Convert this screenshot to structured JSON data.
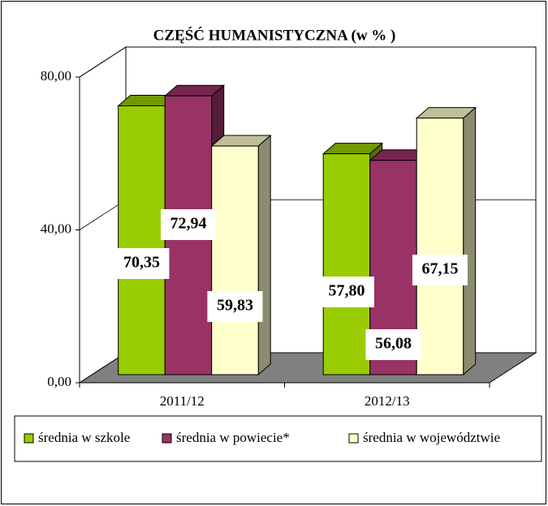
{
  "chart_data": {
    "type": "bar3d",
    "title": "CZĘŚĆ HUMANISTYCZNA (w % )",
    "categories": [
      "2011/12",
      "2012/13"
    ],
    "series": [
      {
        "name": "średnia w szkole",
        "color": "#99cc00",
        "values": [
          70.35,
          57.8
        ],
        "value_labels": [
          "70,35",
          "57,80"
        ]
      },
      {
        "name": "średnia w powiecie*",
        "color": "#993366",
        "values": [
          72.94,
          56.08
        ],
        "value_labels": [
          "72,94",
          "56,08"
        ]
      },
      {
        "name": "średnia w województwie",
        "color": "#ffffcc",
        "values": [
          59.83,
          67.15
        ],
        "value_labels": [
          "59,83",
          "67,15"
        ]
      }
    ],
    "ylim": [
      0,
      80
    ],
    "yticks": [
      {
        "value": 0,
        "label": "0,00"
      },
      {
        "value": 40,
        "label": "40,00"
      },
      {
        "value": 80,
        "label": "80,00"
      }
    ],
    "grid": true,
    "legend": "bottom"
  }
}
